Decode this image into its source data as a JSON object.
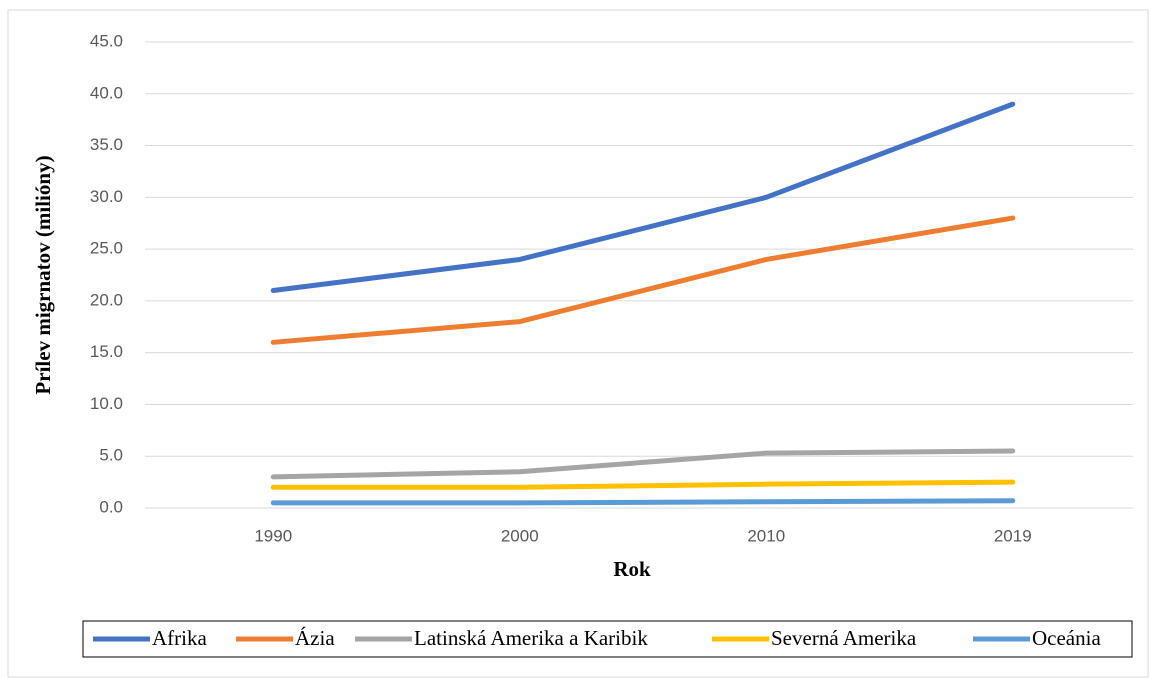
{
  "chart_data": {
    "type": "line",
    "x_label": "Rok",
    "y_label": "Prílev migrnatov (milióny)",
    "categories": [
      "1990",
      "2000",
      "2010",
      "2019"
    ],
    "series": [
      {
        "name": "Afrika",
        "color": "#4472c4",
        "values": [
          21,
          24,
          30,
          39
        ]
      },
      {
        "name": "Ázia",
        "color": "#ed7d31",
        "values": [
          16,
          18,
          24,
          28
        ]
      },
      {
        "name": "Latinská Amerika a Karibik",
        "color": "#a5a5a5",
        "values": [
          3,
          3.5,
          5.3,
          5.5
        ]
      },
      {
        "name": "Severná Amerika",
        "color": "#ffc000",
        "values": [
          2,
          2,
          2.3,
          2.5
        ]
      },
      {
        "name": "Oceánia",
        "color": "#5b9bd5",
        "values": [
          0.5,
          0.5,
          0.6,
          0.7
        ]
      }
    ],
    "ylim": [
      0,
      45
    ],
    "yticks": [
      {
        "value": 0,
        "label": "0.0"
      },
      {
        "value": 5,
        "label": "5.0"
      },
      {
        "value": 10,
        "label": "10.0"
      },
      {
        "value": 15,
        "label": "15.0"
      },
      {
        "value": 20,
        "label": "20.0"
      },
      {
        "value": 25,
        "label": "25.0"
      },
      {
        "value": 30,
        "label": "30.0"
      },
      {
        "value": 35,
        "label": "35.0"
      },
      {
        "value": 40,
        "label": "40.0"
      },
      {
        "value": 45,
        "label": "45.0"
      }
    ],
    "grid": true,
    "legend": "bottom"
  }
}
